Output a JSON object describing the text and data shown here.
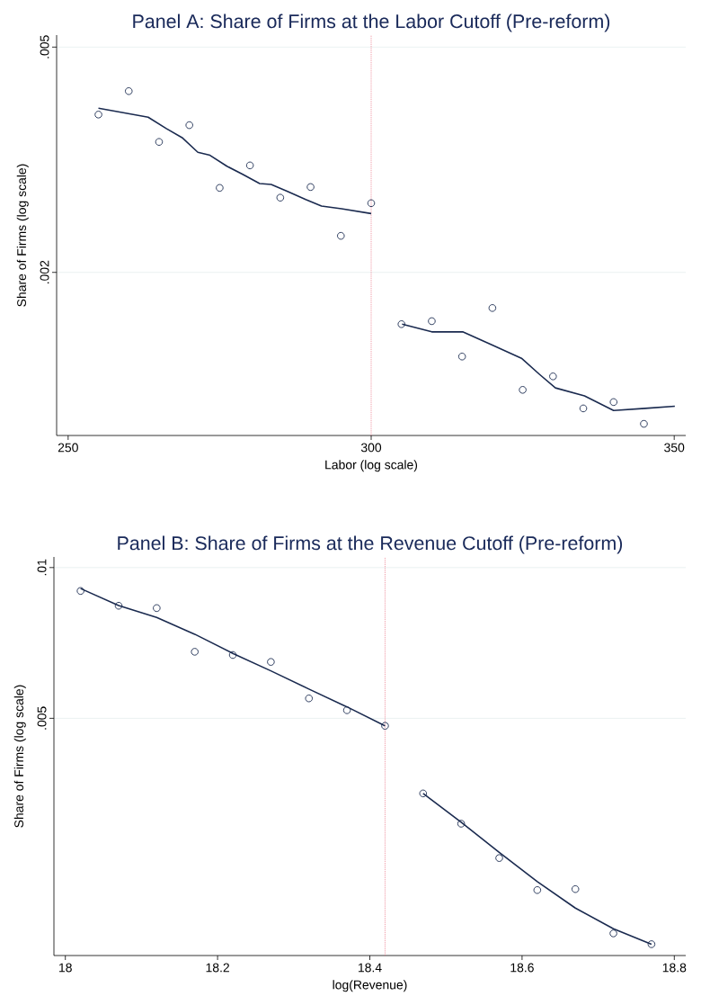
{
  "chart_data": [
    {
      "type": "line",
      "title": "Panel A: Share of Firms at the Labor Cutoff (Pre-reform)",
      "xlabel": "Labor (log scale)",
      "ylabel": "Share of Firms (log scale)",
      "xlim": [
        248.1,
        351.9
      ],
      "ylim": [
        0.00103,
        0.00525
      ],
      "xticks": [
        250,
        300,
        350
      ],
      "yticks": [
        {
          "value": 0.002,
          "label": ".002"
        },
        {
          "value": 0.005,
          "label": ".005"
        }
      ],
      "log": "y",
      "grid": "y",
      "ref_lines": [
        {
          "axis": "x",
          "value": 300,
          "color": "#e8677a",
          "line_style": "dotted"
        }
      ],
      "series": [
        {
          "type": "scatter",
          "marker": "circle",
          "color": "#1a2a4f",
          "x": [
            255,
            260,
            265,
            270,
            275,
            280,
            285,
            290,
            295,
            300,
            305,
            310,
            315,
            320,
            325,
            330,
            335,
            340,
            345
          ],
          "values": [
            0.0038,
            0.00418,
            0.0034,
            0.00364,
            0.00282,
            0.00309,
            0.00271,
            0.00283,
            0.00232,
            0.00265,
            0.00162,
            0.00164,
            0.00142,
            0.00173,
            0.00124,
            0.00131,
            0.00115,
            0.00118,
            0.00108
          ]
        },
        {
          "color": "#1a2a4f",
          "marker": "none",
          "x": [
            255,
            263.2,
            266.2,
            268.8,
            271.4,
            273.4,
            276.2,
            278.8,
            281.6,
            283.5,
            286.2,
            289.2,
            291.8,
            295.1,
            300
          ],
          "values": [
            0.0039,
            0.00376,
            0.00359,
            0.00346,
            0.00326,
            0.00322,
            0.00308,
            0.00298,
            0.00287,
            0.00286,
            0.00278,
            0.00269,
            0.00262,
            0.00259,
            0.00254
          ]
        },
        {
          "color": "#1a2a4f",
          "marker": "none",
          "x": [
            305.1,
            310,
            315.1,
            319.9,
            324.8,
            327.8,
            330.4,
            335.2,
            340,
            345.2,
            350.1
          ],
          "values": [
            0.00162,
            0.00157,
            0.00157,
            0.00149,
            0.00141,
            0.00132,
            0.00125,
            0.00121,
            0.00114,
            0.00115,
            0.00116
          ]
        }
      ]
    },
    {
      "type": "line",
      "title": "Panel B: Share of Firms at the Revenue Cutoff (Pre-reform)",
      "xlabel": "log(Revenue)",
      "ylabel": "Share of Firms (log scale)",
      "xlim": [
        17.985,
        18.815
      ],
      "ylim": [
        0.00168,
        0.0105
      ],
      "xticks": [
        18,
        18.2,
        18.4,
        18.6,
        18.8
      ],
      "yticks": [
        {
          "value": 0.005,
          "label": ".005"
        },
        {
          "value": 0.01,
          "label": ".01"
        }
      ],
      "log": "y",
      "grid": "y",
      "ref_lines": [
        {
          "axis": "x",
          "value": 18.42,
          "color": "#e8677a",
          "line_style": "dotted"
        }
      ],
      "series": [
        {
          "type": "scatter",
          "marker": "circle",
          "color": "#1a2a4f",
          "x": [
            18.02,
            18.07,
            18.12,
            18.17,
            18.22,
            18.27,
            18.32,
            18.37,
            18.42,
            18.47,
            18.52,
            18.57,
            18.62,
            18.67,
            18.72,
            18.77
          ],
          "values": [
            0.00898,
            0.00839,
            0.0083,
            0.00679,
            0.00669,
            0.00648,
            0.00548,
            0.00519,
            0.00483,
            0.00354,
            0.00308,
            0.00263,
            0.00227,
            0.00228,
            0.00186,
            0.00177
          ]
        },
        {
          "color": "#1a2a4f",
          "marker": "none",
          "x": [
            18.02,
            18.07,
            18.12,
            18.17,
            18.22,
            18.27,
            18.32,
            18.37,
            18.42
          ],
          "values": [
            0.00908,
            0.0084,
            0.00795,
            0.00736,
            0.00674,
            0.00622,
            0.00572,
            0.00527,
            0.00483
          ]
        },
        {
          "color": "#1a2a4f",
          "marker": "none",
          "x": [
            18.47,
            18.52,
            18.57,
            18.62,
            18.67,
            18.72,
            18.77
          ],
          "values": [
            0.00354,
            0.0031,
            0.0027,
            0.00236,
            0.00209,
            0.0019,
            0.00177
          ]
        }
      ]
    }
  ]
}
